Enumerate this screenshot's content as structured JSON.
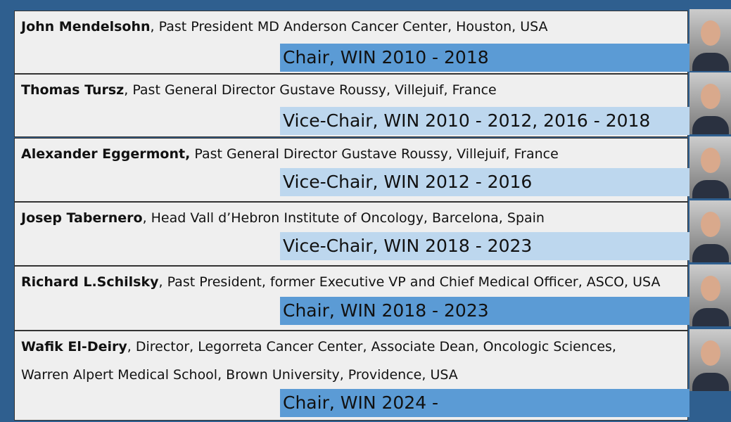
{
  "people": [
    {
      "name": "John Mendelsohn",
      "description": ", Past President MD Anderson Cancer Center, Houston, USA",
      "role": "Chair, WIN 2010 - 2018",
      "color": "#5b9bd5"
    },
    {
      "name": "Thomas Tursz",
      "description": ", Past General Director Gustave Roussy, Villejuif, France",
      "role": "Vice-Chair, WIN 2010 - 2012, 2016 - 2018",
      "color": "#bdd7ee"
    },
    {
      "name": "Alexander Eggermont,",
      "description": " Past General Director Gustave Roussy, Villejuif, France",
      "role": "Vice-Chair, WIN 2012 - 2016",
      "color": "#bdd7ee"
    },
    {
      "name": "Josep Tabernero",
      "description": ", Head Vall d’Hebron Institute of Oncology, Barcelona, Spain",
      "role": "Vice-Chair, WIN 2018 - 2023",
      "color": "#bdd7ee"
    },
    {
      "name": "Richard L.Schilsky",
      "description": ", Past President, former Executive VP and Chief Medical Officer, ASCO, USA",
      "role": "Chair, WIN 2018 - 2023",
      "color": "#5b9bd5"
    },
    {
      "name": "Wafik El-Deiry",
      "description": ", Director, Legorreta Cancer Center, Associate Dean, Oncologic Sciences, Warren Alpert Medical School, Brown University, Providence, USA",
      "role": "Chair, WIN 2024 -",
      "color": "#5b9bd5"
    }
  ]
}
